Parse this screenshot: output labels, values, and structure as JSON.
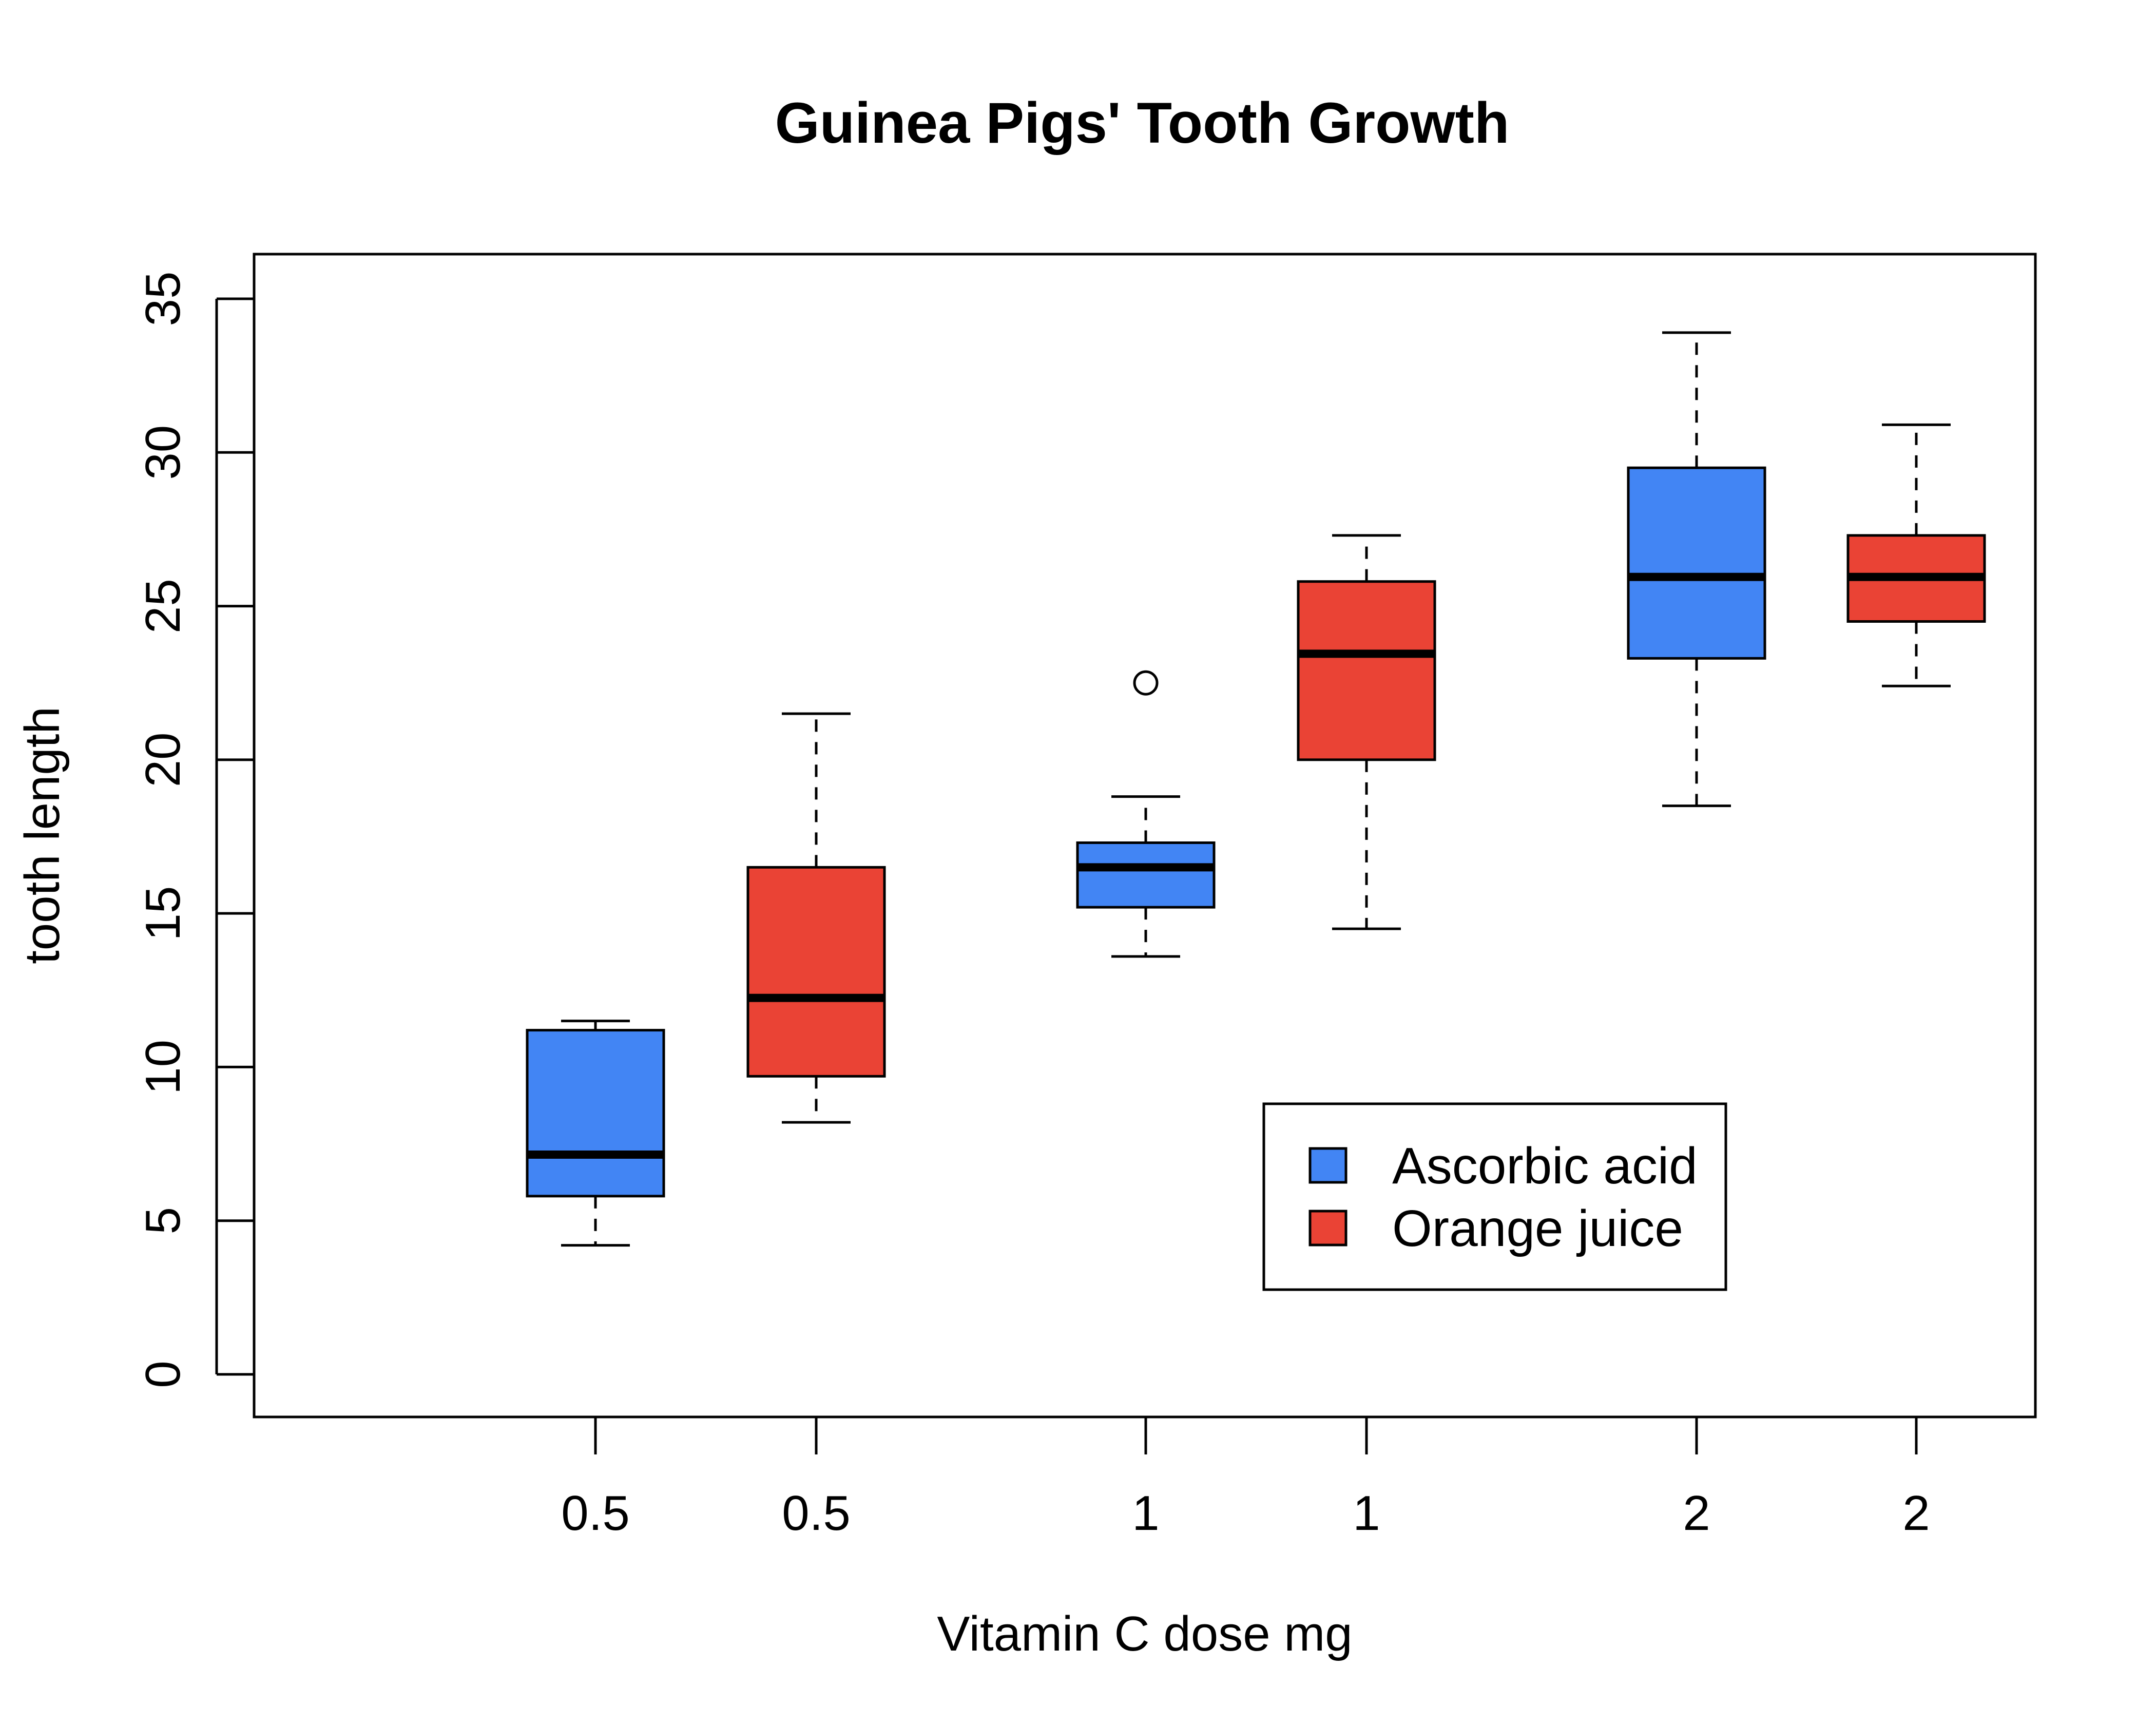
{
  "chart_data": {
    "type": "boxplot",
    "title": "Guinea Pigs' Tooth Growth",
    "xlabel": "Vitamin C dose mg",
    "ylabel": "tooth length",
    "ylim": [
      0,
      35
    ],
    "yticks": [
      0,
      5,
      10,
      15,
      20,
      25,
      30,
      35
    ],
    "grid": false,
    "legend": {
      "position": "bottom-right",
      "entries": [
        {
          "label": "Ascorbic acid",
          "color": "#4285f4"
        },
        {
          "label": "Orange juice",
          "color": "#ea4335"
        }
      ]
    },
    "boxes": [
      {
        "label": "0.5",
        "series": "Ascorbic acid",
        "color": "#4285f4",
        "min": 4.2,
        "q1": 5.8,
        "median": 7.15,
        "q3": 11.2,
        "max": 11.5,
        "outliers": []
      },
      {
        "label": "0.5",
        "series": "Orange juice",
        "color": "#ea4335",
        "min": 8.2,
        "q1": 9.7,
        "median": 12.25,
        "q3": 16.5,
        "max": 21.5,
        "outliers": []
      },
      {
        "label": "1",
        "series": "Ascorbic acid",
        "color": "#4285f4",
        "min": 13.6,
        "q1": 15.2,
        "median": 16.5,
        "q3": 17.3,
        "max": 18.8,
        "outliers": [
          22.5
        ]
      },
      {
        "label": "1",
        "series": "Orange juice",
        "color": "#ea4335",
        "min": 14.5,
        "q1": 20.0,
        "median": 23.45,
        "q3": 25.8,
        "max": 27.3,
        "outliers": []
      },
      {
        "label": "2",
        "series": "Ascorbic acid",
        "color": "#4285f4",
        "min": 18.5,
        "q1": 23.3,
        "median": 25.95,
        "q3": 29.5,
        "max": 33.9,
        "outliers": []
      },
      {
        "label": "2",
        "series": "Orange juice",
        "color": "#ea4335",
        "min": 22.4,
        "q1": 24.5,
        "median": 25.95,
        "q3": 27.3,
        "max": 30.9,
        "outliers": []
      }
    ]
  }
}
